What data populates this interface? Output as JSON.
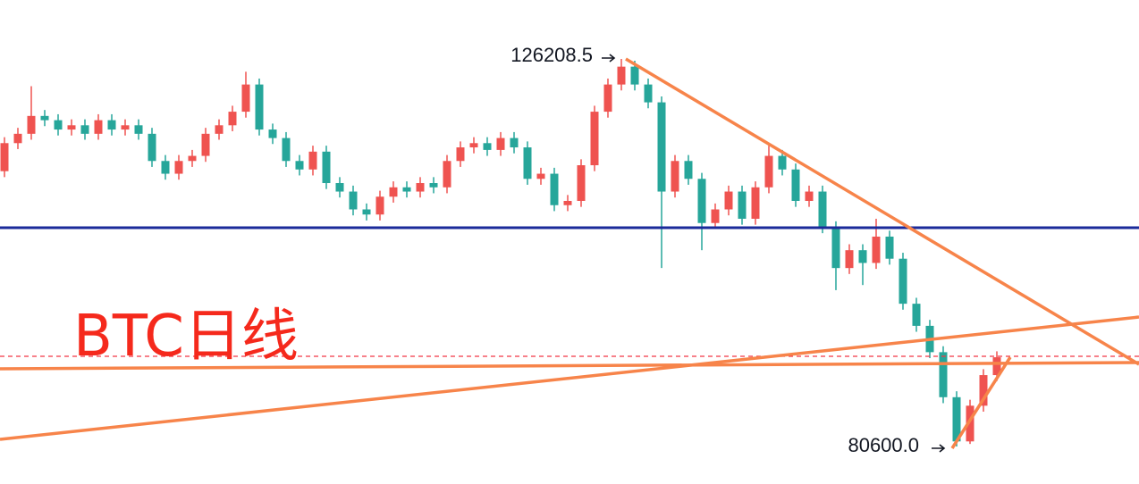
{
  "chart_data": {
    "type": "candlestick",
    "title": "BTC日线",
    "up_color": "#ef5350",
    "down_color": "#26a69a",
    "high_label": "126208.5",
    "low_label": "80600.0",
    "open": [
      113000,
      116300,
      117400,
      119500,
      119000,
      117900,
      118400,
      117400,
      119000,
      117900,
      118400,
      117400,
      114200,
      112700,
      114200,
      114800,
      117400,
      118400,
      120000,
      123200,
      117900,
      116900,
      114200,
      113200,
      115300,
      111600,
      110600,
      108500,
      107900,
      110000,
      111100,
      110600,
      111600,
      111100,
      114200,
      115800,
      116300,
      115500,
      116900,
      115800,
      112100,
      112700,
      109000,
      109500,
      113700,
      120000,
      123200,
      125300,
      123200,
      121100,
      110600,
      114200,
      112100,
      106900,
      108500,
      110600,
      107400,
      111100,
      114800,
      113200,
      109500,
      110600,
      106400,
      101600,
      103700,
      102200,
      105300,
      102700,
      97400,
      94800,
      91700,
      86400,
      81200,
      85400,
      89000
    ],
    "high": [
      117000,
      118100,
      123000,
      120200,
      119700,
      119100,
      119100,
      119700,
      119700,
      119100,
      119100,
      118100,
      114900,
      114900,
      115500,
      118100,
      119100,
      120700,
      124700,
      123900,
      118600,
      117600,
      114900,
      116000,
      116000,
      112300,
      111300,
      109200,
      110700,
      111800,
      111800,
      112300,
      112300,
      114900,
      116500,
      117000,
      117000,
      117600,
      117600,
      116500,
      113400,
      113400,
      110200,
      114400,
      120700,
      123900,
      126208.5,
      126000,
      123900,
      121800,
      114900,
      114900,
      112800,
      109200,
      111300,
      111300,
      111800,
      116000,
      115500,
      113900,
      111300,
      111300,
      107100,
      104400,
      104400,
      107400,
      106000,
      103400,
      98100,
      95500,
      92400,
      87100,
      86100,
      89700,
      91800
    ],
    "low": [
      112300,
      115600,
      116700,
      118300,
      117200,
      117200,
      116700,
      116700,
      117200,
      117200,
      116700,
      113500,
      112000,
      112000,
      113500,
      114100,
      116700,
      117700,
      119300,
      117200,
      116200,
      113500,
      112500,
      112500,
      110900,
      109900,
      107800,
      107200,
      107200,
      109300,
      109900,
      109900,
      110400,
      110400,
      113500,
      115100,
      114800,
      114800,
      115100,
      111400,
      111400,
      108300,
      108300,
      108800,
      113000,
      119300,
      122500,
      122500,
      120400,
      101600,
      109900,
      111400,
      103700,
      106200,
      107800,
      106700,
      106700,
      110400,
      112500,
      108800,
      108800,
      105700,
      99000,
      100900,
      99600,
      101500,
      102000,
      96700,
      94100,
      91000,
      85700,
      80600,
      80900,
      84700,
      88300
    ],
    "close": [
      116300,
      117400,
      119500,
      119000,
      117900,
      118400,
      117400,
      119000,
      117900,
      118400,
      117400,
      114200,
      112700,
      114200,
      114800,
      117400,
      118400,
      120000,
      123200,
      117900,
      116900,
      114200,
      113200,
      115300,
      111600,
      110600,
      108500,
      107900,
      110000,
      111100,
      110600,
      111600,
      111100,
      114200,
      115800,
      116300,
      115500,
      116900,
      115800,
      112100,
      112700,
      109000,
      109500,
      113700,
      120000,
      123200,
      125300,
      123200,
      121100,
      110600,
      114200,
      112100,
      106900,
      108500,
      110600,
      107400,
      111100,
      114800,
      113200,
      109500,
      110600,
      106400,
      101600,
      103700,
      102200,
      105300,
      102700,
      97400,
      94800,
      91700,
      86400,
      81200,
      85400,
      89000,
      91100
    ]
  }
}
